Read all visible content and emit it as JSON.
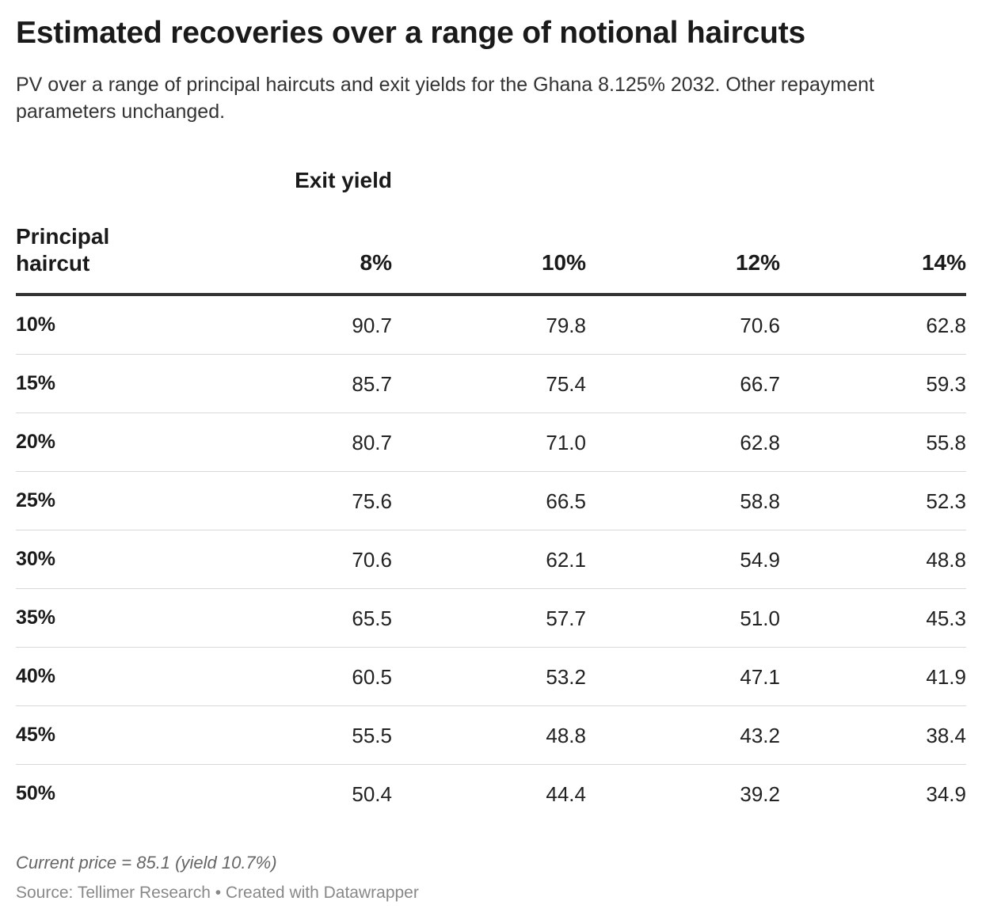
{
  "title": "Estimated recoveries over a range of notional haircuts",
  "subtitle": "PV over a range of principal haircuts and exit yields for the Ghana 8.125% 2032. Other repayment parameters unchanged.",
  "note": "Current price = 85.1 (yield 10.7%)",
  "source": "Source: Tellimer Research • Created with Datawrapper",
  "chart_data": {
    "type": "table",
    "column_group_header": "Exit yield",
    "row_header": "Principal haircut",
    "columns": [
      "8%",
      "10%",
      "12%",
      "14%"
    ],
    "rows": [
      {
        "label": "10%",
        "values": [
          "90.7",
          "79.8",
          "70.6",
          "62.8"
        ]
      },
      {
        "label": "15%",
        "values": [
          "85.7",
          "75.4",
          "66.7",
          "59.3"
        ]
      },
      {
        "label": "20%",
        "values": [
          "80.7",
          "71.0",
          "62.8",
          "55.8"
        ]
      },
      {
        "label": "25%",
        "values": [
          "75.6",
          "66.5",
          "58.8",
          "52.3"
        ]
      },
      {
        "label": "30%",
        "values": [
          "70.6",
          "62.1",
          "54.9",
          "48.8"
        ]
      },
      {
        "label": "35%",
        "values": [
          "65.5",
          "57.7",
          "51.0",
          "45.3"
        ]
      },
      {
        "label": "40%",
        "values": [
          "60.5",
          "53.2",
          "47.1",
          "41.9"
        ]
      },
      {
        "label": "45%",
        "values": [
          "55.5",
          "48.8",
          "43.2",
          "38.4"
        ]
      },
      {
        "label": "50%",
        "values": [
          "50.4",
          "44.4",
          "39.2",
          "34.9"
        ]
      }
    ]
  }
}
